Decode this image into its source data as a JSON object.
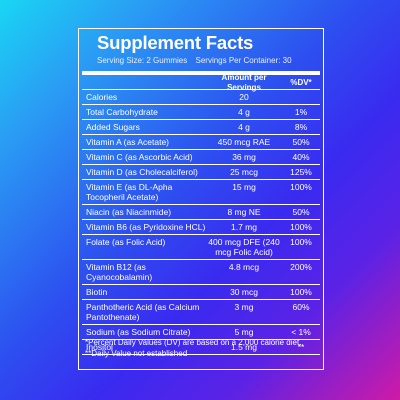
{
  "title": "Supplement Facts",
  "serving_size": "Serving Size: 2 Gummies",
  "servings_per_container": "Servings Per Container: 30",
  "header": {
    "amount": "Amount per Servings",
    "dv": "%DV*"
  },
  "rows": [
    {
      "name": "Calories",
      "amount": "20",
      "dv": ""
    },
    {
      "name": "Total Carbohydrate",
      "amount": "4 g",
      "dv": "1%"
    },
    {
      "name": "Added Sugars",
      "amount": "4 g",
      "dv": "8%"
    },
    {
      "name": "Vitamin A (as Acetate)",
      "amount": "450 mcg RAE",
      "dv": "50%"
    },
    {
      "name": "Vitamin C (as Ascorbic Acid)",
      "amount": "36 mg",
      "dv": "40%"
    },
    {
      "name": "Vitamin D (as Cholecalciferol)",
      "amount": "25 mcg",
      "dv": "125%"
    },
    {
      "name": "Vitamin E (as DL-Apha Tocopheril Acetate)",
      "amount": "15 mg",
      "dv": "100%"
    },
    {
      "name": "Niacin (as Niacinmide)",
      "amount": "8 mg NE",
      "dv": "50%"
    },
    {
      "name": "Vitamin B6 (as Pyridoxine HCL)",
      "amount": "1.7 mg",
      "dv": "100%"
    },
    {
      "name": "Folate (as Folic Acid)",
      "amount": "400 mcg DFE (240 mcg Folic Acid)",
      "dv": "100%"
    },
    {
      "name": "Vitamin B12 (as Cyanocobalamin)",
      "amount": "4.8 mcg",
      "dv": "200%"
    },
    {
      "name": "Biotin",
      "amount": "30 mcg",
      "dv": "100%"
    },
    {
      "name": "Panthotheric Acid (as Calcium Pantothenate)",
      "amount": "3 mg",
      "dv": "60%"
    },
    {
      "name": "Sodium (as Sodium Citrate)",
      "amount": "5 mg",
      "dv": "< 1%"
    },
    {
      "name": "Inositol",
      "amount": "1.5 mg",
      "dv": "**"
    }
  ],
  "footnote_1": "*Percent Daily Values (DV) are based on a 2,000 calorie diet.",
  "footnote_2": "**Daily Value not established",
  "colors": {
    "text": "#ffffff",
    "gradient_start": "#19d6f4",
    "gradient_mid": "#3a2af0",
    "gradient_end": "#d01aa6"
  }
}
